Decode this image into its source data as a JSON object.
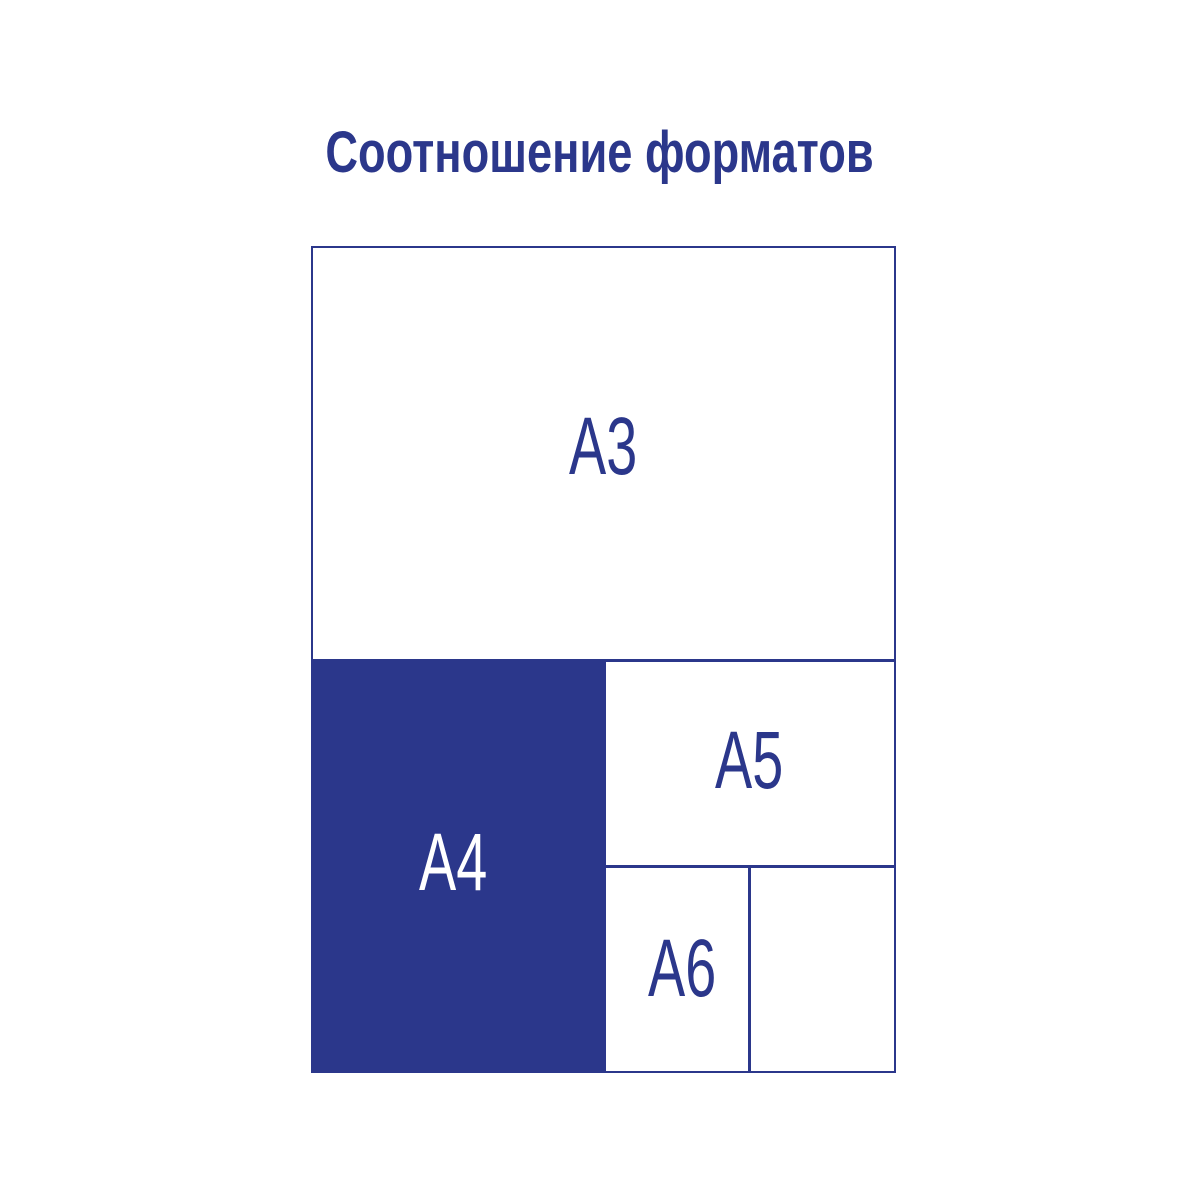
{
  "title": "Соотношение форматов",
  "colors": {
    "accent": "#2b378b",
    "background": "#ffffff"
  },
  "formats": [
    {
      "label": "A3",
      "filled": false
    },
    {
      "label": "A4",
      "filled": true
    },
    {
      "label": "A5",
      "filled": false
    },
    {
      "label": "A6",
      "filled": false
    },
    {
      "label": "",
      "filled": false
    }
  ]
}
